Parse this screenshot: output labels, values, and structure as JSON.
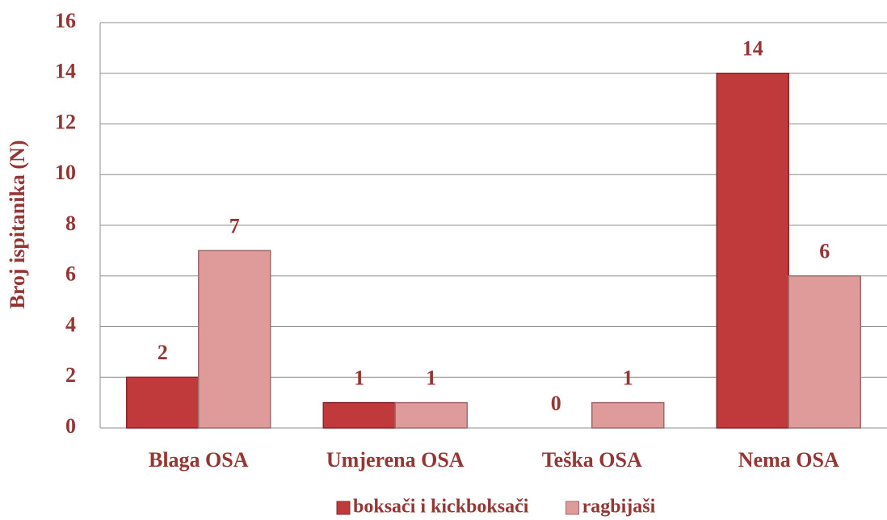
{
  "chart_data": {
    "type": "bar",
    "ylabel": "Broj ispitanika (N)",
    "categories": [
      "Blaga OSA",
      "Umjerena OSA",
      "Teška OSA",
      "Nema OSA"
    ],
    "series": [
      {
        "name": "boksači i kickboksači",
        "color": "#c0393b",
        "values": [
          2,
          1,
          0,
          14
        ]
      },
      {
        "name": "ragbijaši",
        "color": "#df9a9a",
        "values": [
          7,
          1,
          1,
          6
        ]
      }
    ],
    "ylim": [
      0,
      16
    ],
    "yticks": [
      0,
      2,
      4,
      6,
      8,
      10,
      12,
      14,
      16
    ],
    "grid": true,
    "legend": "bottom"
  }
}
